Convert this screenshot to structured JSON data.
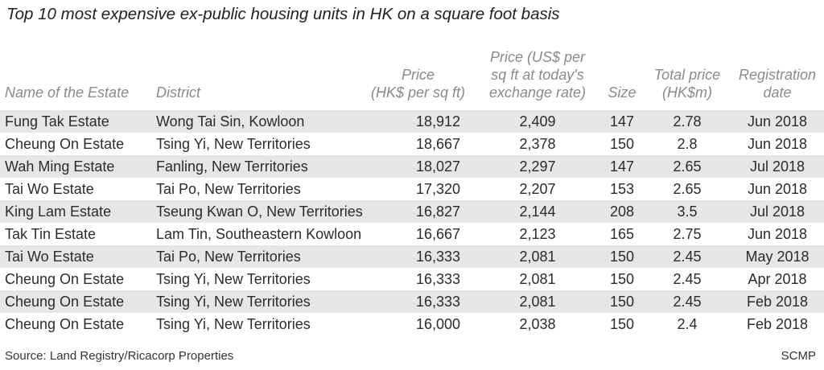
{
  "title": "Top 10 most expensive ex-public housing units in HK on a square foot basis",
  "headers": {
    "estate": "Name of the Estate",
    "district": "District",
    "price_hk": [
      "Price",
      "(HK$ per sq ft)"
    ],
    "price_us": [
      "Price (US$ per",
      "sq ft at today's",
      "exchange rate)"
    ],
    "size": "Size",
    "total": [
      "Total price",
      "(HK$m)"
    ],
    "date": [
      "Registration",
      "date"
    ]
  },
  "rows": [
    {
      "estate": "Fung Tak Estate",
      "district": "Wong Tai Sin, Kowloon",
      "price_hk": "18,912",
      "price_us": "2,409",
      "size": "147",
      "total": "2.78",
      "date": "Jun 2018"
    },
    {
      "estate": "Cheung On Estate",
      "district": "Tsing Yi, New Territories",
      "price_hk": "18,667",
      "price_us": "2,378",
      "size": "150",
      "total": "2.8",
      "date": "Jun 2018"
    },
    {
      "estate": "Wah Ming Estate",
      "district": "Fanling, New Territories",
      "price_hk": "18,027",
      "price_us": "2,297",
      "size": "147",
      "total": "2.65",
      "date": "Jul 2018"
    },
    {
      "estate": "Tai Wo Estate",
      "district": "Tai Po, New Territories",
      "price_hk": "17,320",
      "price_us": "2,207",
      "size": "153",
      "total": "2.65",
      "date": "Jun 2018"
    },
    {
      "estate": "King Lam Estate",
      "district": "Tseung Kwan O, New Territories",
      "price_hk": "16,827",
      "price_us": "2,144",
      "size": "208",
      "total": "3.5",
      "date": "Jul 2018"
    },
    {
      "estate": "Tak Tin Estate",
      "district": "Lam Tin, Southeastern Kowloon",
      "price_hk": "16,667",
      "price_us": "2,123",
      "size": "165",
      "total": "2.75",
      "date": "Jun 2018"
    },
    {
      "estate": "Tai Wo Estate",
      "district": "Tai Po, New Territories",
      "price_hk": "16,333",
      "price_us": "2,081",
      "size": "150",
      "total": "2.45",
      "date": "May 2018"
    },
    {
      "estate": "Cheung On Estate",
      "district": "Tsing Yi, New Territories",
      "price_hk": "16,333",
      "price_us": "2,081",
      "size": "150",
      "total": "2.45",
      "date": "Apr 2018"
    },
    {
      "estate": "Cheung On Estate",
      "district": "Tsing Yi, New Territories",
      "price_hk": "16,333",
      "price_us": "2,081",
      "size": "150",
      "total": "2.45",
      "date": "Feb 2018"
    },
    {
      "estate": "Cheung On Estate",
      "district": "Tsing Yi, New Territories",
      "price_hk": "16,000",
      "price_us": "2,038",
      "size": "150",
      "total": "2.4",
      "date": "Feb 2018"
    }
  ],
  "source": "Source: Land Registry/Ricacorp Properties",
  "credit": "SCMP",
  "colors": {
    "shade": "#e6e6e6",
    "header_text": "#8a8a8a"
  }
}
